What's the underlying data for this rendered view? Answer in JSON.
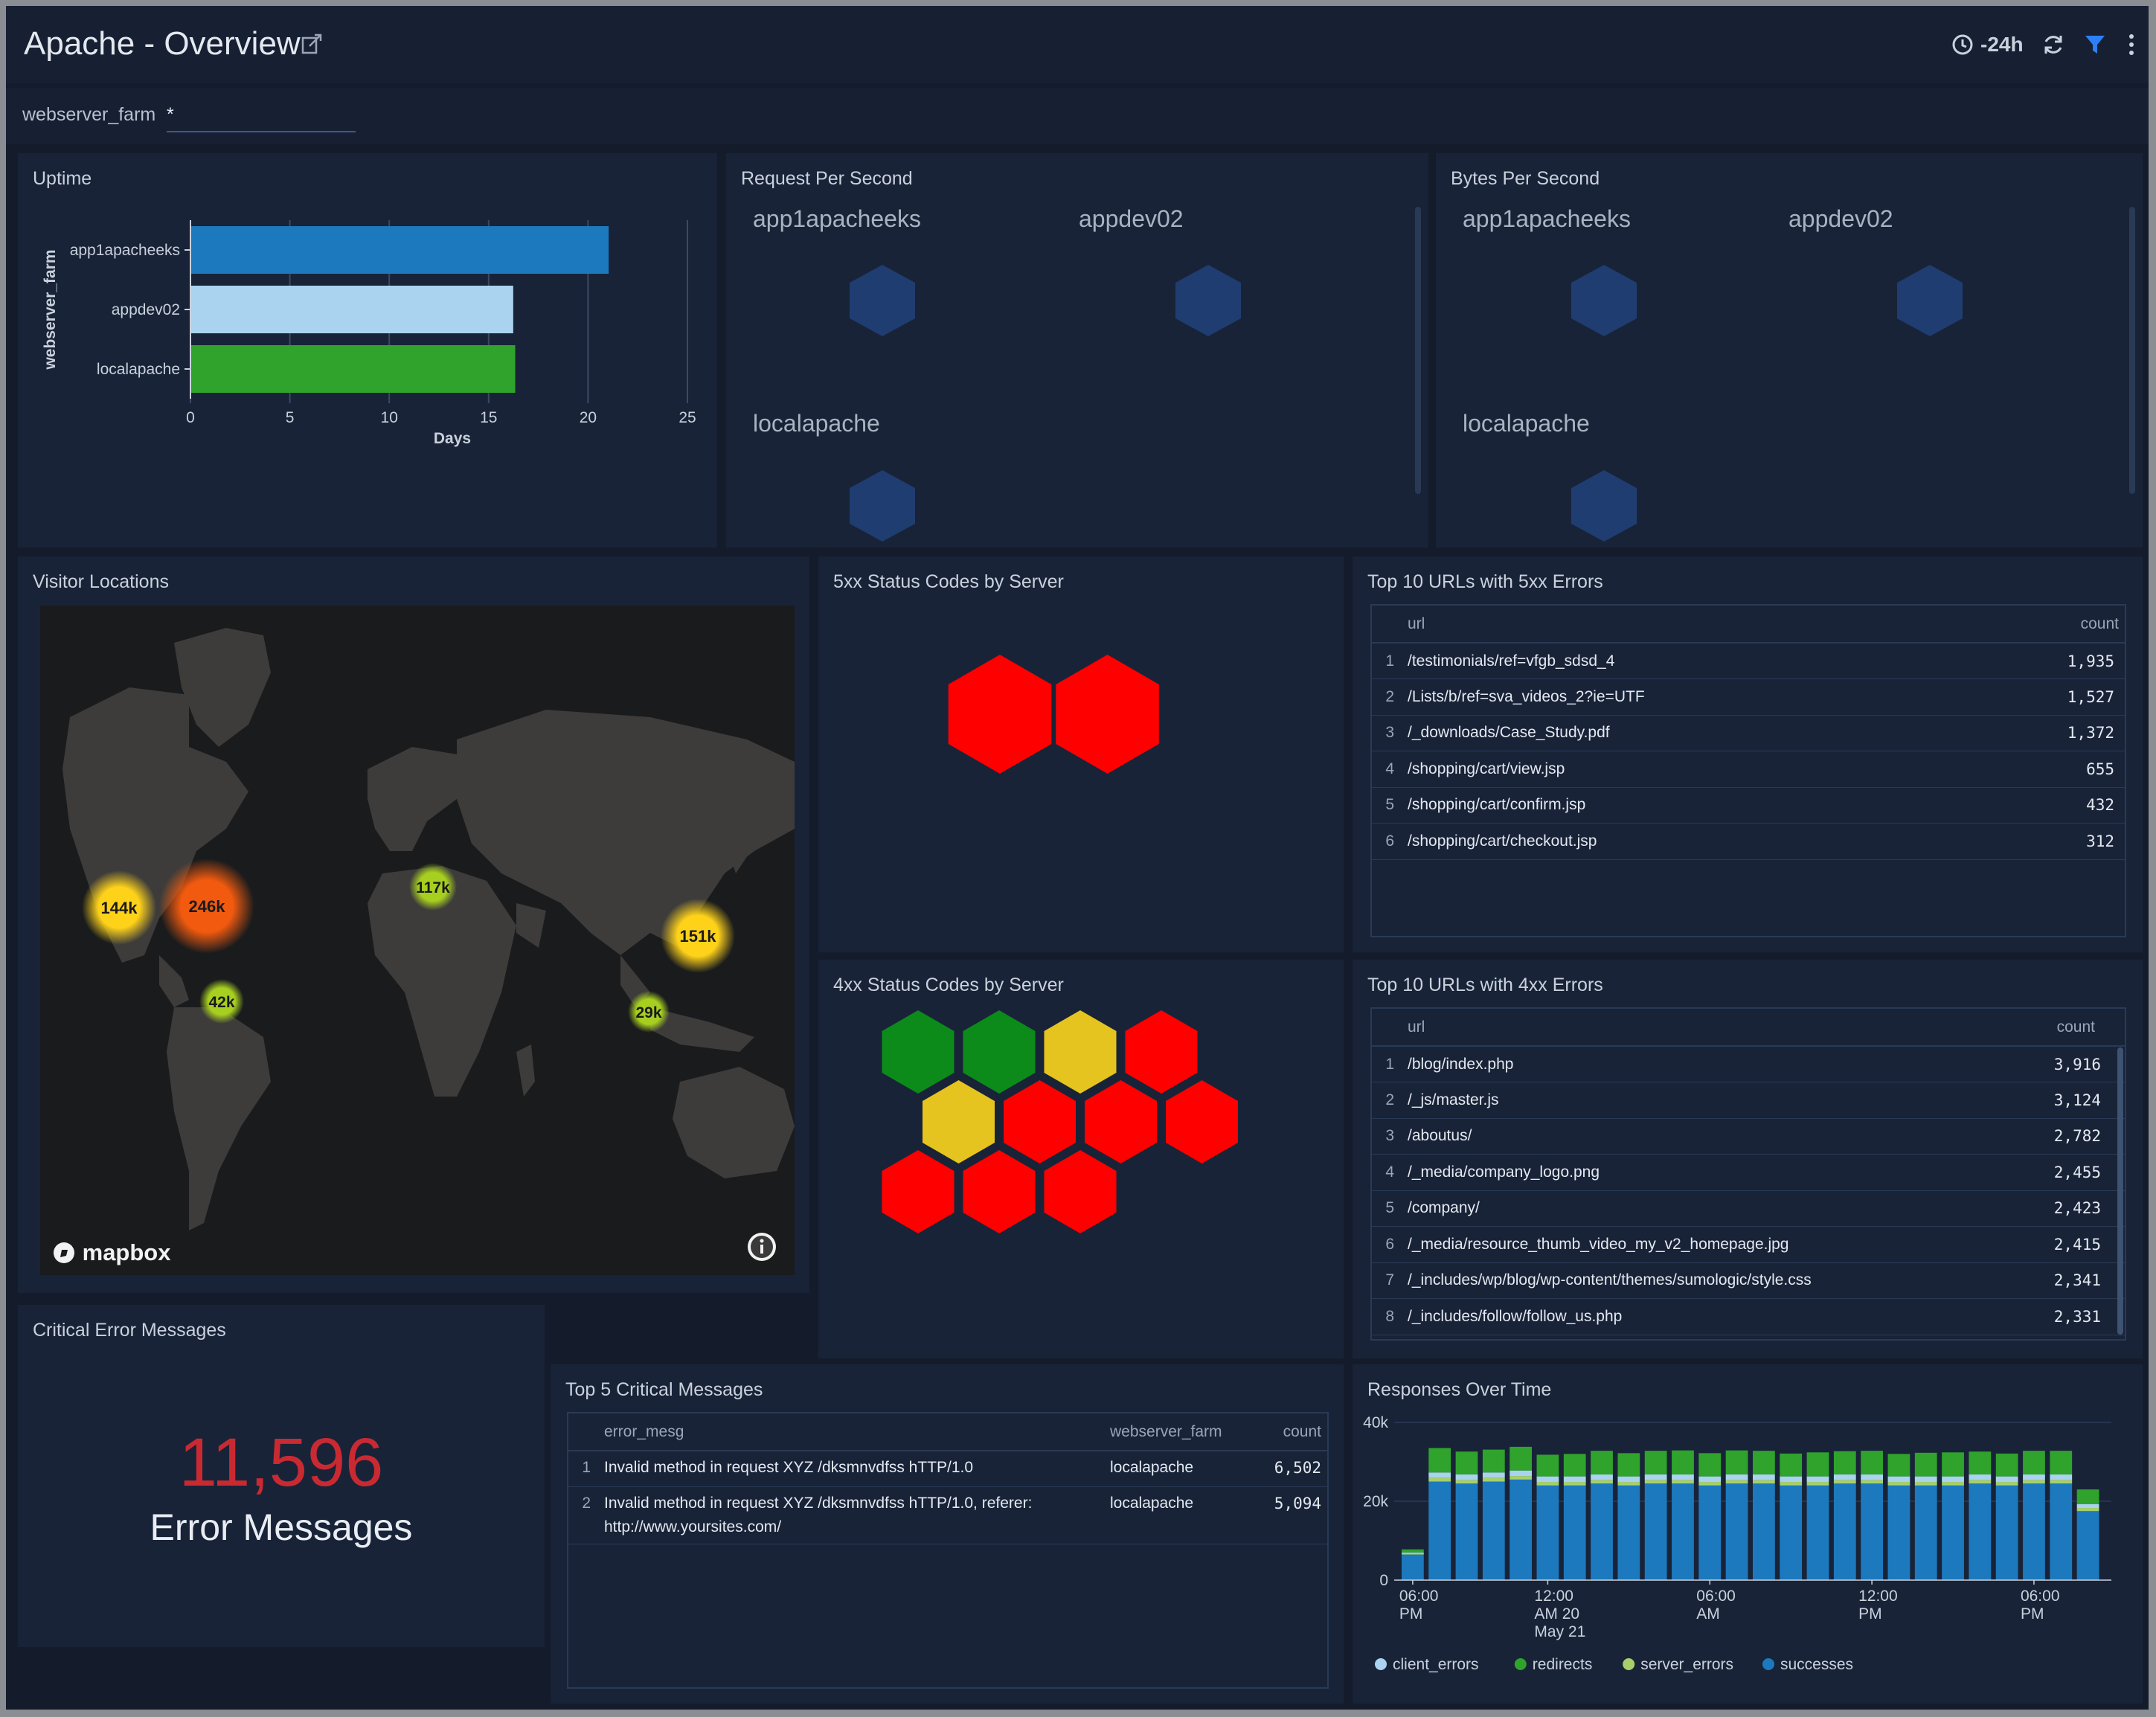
{
  "header": {
    "title": "Apache - Overview",
    "time_range": "-24h"
  },
  "filter": {
    "label": "webserver_farm",
    "value": "*"
  },
  "uptime": {
    "title": "Uptime",
    "chart_data": {
      "type": "bar",
      "orientation": "horizontal",
      "categories": [
        "app1apacheeks",
        "appdev02",
        "localapache"
      ],
      "values": [
        21,
        16.2,
        16.3
      ],
      "colors": [
        "#1c79be",
        "#a9d3ee",
        "#2fa32c"
      ],
      "xlabel": "Days",
      "ylabel": "webserver_farm",
      "xlim": [
        0,
        25
      ],
      "xticks": [
        "0",
        "5",
        "10",
        "15",
        "20",
        "25"
      ],
      "grid": true
    }
  },
  "rps": {
    "title": "Request Per Second",
    "labels": [
      "app1apacheeks",
      "appdev02",
      "localapache"
    ],
    "hex_color": "#1f3d70"
  },
  "bps": {
    "title": "Bytes Per Second",
    "labels": [
      "app1apacheeks",
      "appdev02",
      "localapache"
    ],
    "hex_color": "#1f3d70"
  },
  "map": {
    "title": "Visitor Locations",
    "logo": "mapbox",
    "clusters": [
      {
        "label": "144k",
        "color": "#ffd21a"
      },
      {
        "label": "246k",
        "color": "#f15a0f"
      },
      {
        "label": "117k",
        "color": "#a7cf20"
      },
      {
        "label": "151k",
        "color": "#ffd21a"
      },
      {
        "label": "42k",
        "color": "#a7cf20"
      },
      {
        "label": "29k",
        "color": "#a7cf20"
      }
    ]
  },
  "status5xx": {
    "title": "5xx Status Codes by Server",
    "hex_colors": [
      "#ff0000",
      "#ff0000"
    ]
  },
  "status4xx": {
    "title": "4xx Status Codes by Server",
    "hex_colors": [
      "#0c8a1a",
      "#0c8a1a",
      "#e6c41f",
      "#ff0000",
      "#e6c41f",
      "#ff0000",
      "#ff0000",
      "#ff0000",
      "#ff0000",
      "#ff0000",
      "#ff0000"
    ]
  },
  "top5xx": {
    "title": "Top 10 URLs with 5xx Errors",
    "columns": [
      "url",
      "count"
    ],
    "rows": [
      {
        "idx": "1",
        "url": "/testimonials/ref=vfgb_sdsd_4",
        "count": "1,935"
      },
      {
        "idx": "2",
        "url": "/Lists/b/ref=sva_videos_2?ie=UTF",
        "count": "1,527"
      },
      {
        "idx": "3",
        "url": "/_downloads/Case_Study.pdf",
        "count": "1,372"
      },
      {
        "idx": "4",
        "url": "/shopping/cart/view.jsp",
        "count": "655"
      },
      {
        "idx": "5",
        "url": "/shopping/cart/confirm.jsp",
        "count": "432"
      },
      {
        "idx": "6",
        "url": "/shopping/cart/checkout.jsp",
        "count": "312"
      }
    ]
  },
  "top4xx": {
    "title": "Top 10 URLs with 4xx Errors",
    "columns": [
      "url",
      "count"
    ],
    "rows": [
      {
        "idx": "1",
        "url": "/blog/index.php",
        "count": "3,916"
      },
      {
        "idx": "2",
        "url": "/_js/master.js",
        "count": "3,124"
      },
      {
        "idx": "3",
        "url": "/aboutus/",
        "count": "2,782"
      },
      {
        "idx": "4",
        "url": "/_media/company_logo.png",
        "count": "2,455"
      },
      {
        "idx": "5",
        "url": "/company/",
        "count": "2,423"
      },
      {
        "idx": "6",
        "url": "/_media/resource_thumb_video_my_v2_homepage.jpg",
        "count": "2,415"
      },
      {
        "idx": "7",
        "url": "/_includes/wp/blog/wp-content/themes/sumologic/style.css",
        "count": "2,341"
      },
      {
        "idx": "8",
        "url": "/_includes/follow/follow_us.php",
        "count": "2,331"
      }
    ]
  },
  "critical": {
    "title": "Critical Error Messages",
    "value": "11,596",
    "subtitle": "Error Messages"
  },
  "top5crit": {
    "title": "Top 5 Critical Messages",
    "columns": [
      "error_mesg",
      "webserver_farm",
      "count"
    ],
    "rows": [
      {
        "idx": "1",
        "msg": "Invalid method in request XYZ /dksmnvdfss hTTP/1.0",
        "farm": "localapache",
        "count": "6,502"
      },
      {
        "idx": "2",
        "msg": "Invalid method in request XYZ /dksmnvdfss hTTP/1.0, referer: http://www.yoursites.com/",
        "farm": "localapache",
        "count": "5,094"
      }
    ]
  },
  "responses": {
    "title": "Responses Over Time",
    "chart_data": {
      "type": "bar",
      "stacked": true,
      "ylim": [
        0,
        40000
      ],
      "yticks": [
        "0",
        "20k",
        "40k"
      ],
      "xticks": [
        {
          "line1": "06:00",
          "line2": "PM",
          "line3": ""
        },
        {
          "line1": "12:00",
          "line2": "AM 20",
          "line3": "May 21"
        },
        {
          "line1": "06:00",
          "line2": "AM",
          "line3": ""
        },
        {
          "line1": "12:00",
          "line2": "PM",
          "line3": ""
        },
        {
          "line1": "06:00",
          "line2": "PM",
          "line3": ""
        }
      ],
      "series": [
        {
          "name": "successes",
          "color": "#1c79be",
          "values": [
            6500,
            25000,
            24500,
            25000,
            25500,
            24000,
            24000,
            24500,
            24000,
            24500,
            24500,
            24000,
            24500,
            24500,
            24000,
            24000,
            24500,
            24500,
            24000,
            24000,
            24000,
            24500,
            24000,
            24500,
            24500,
            17500
          ]
        },
        {
          "name": "server_errors",
          "color": "#a7d06b",
          "values": [
            300,
            900,
            900,
            900,
            900,
            900,
            900,
            900,
            900,
            900,
            900,
            900,
            900,
            900,
            900,
            900,
            900,
            900,
            900,
            900,
            900,
            900,
            900,
            900,
            900,
            800
          ]
        },
        {
          "name": "client_errors",
          "color": "#a9d3ee",
          "values": [
            200,
            1400,
            1400,
            1400,
            1400,
            1400,
            1400,
            1400,
            1400,
            1400,
            1400,
            1400,
            1400,
            1400,
            1400,
            1400,
            1400,
            1400,
            1400,
            1400,
            1400,
            1400,
            1400,
            1400,
            1400,
            1000
          ]
        },
        {
          "name": "redirects",
          "color": "#2fa32c",
          "values": [
            800,
            6200,
            5800,
            5800,
            6000,
            5500,
            5700,
            6000,
            5900,
            6000,
            6100,
            5900,
            6100,
            6000,
            5800,
            6100,
            5900,
            6000,
            5700,
            6000,
            6100,
            5800,
            5800,
            6000,
            6000,
            3700
          ]
        }
      ],
      "legend": [
        "client_errors",
        "redirects",
        "server_errors",
        "successes"
      ],
      "legend_colors": [
        "#a9d3ee",
        "#2fa32c",
        "#a7d06b",
        "#1c79be"
      ],
      "legend_position": "bottom"
    }
  }
}
